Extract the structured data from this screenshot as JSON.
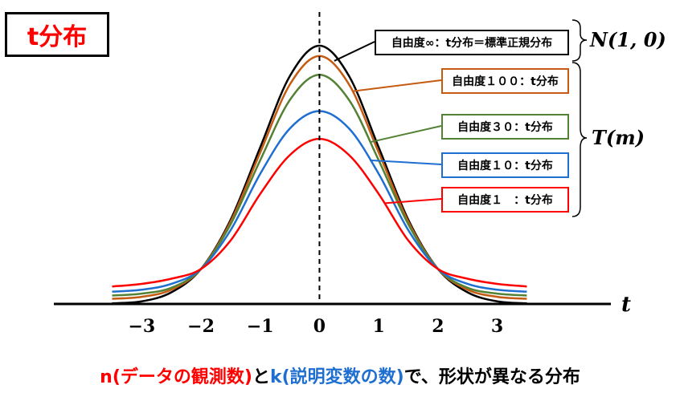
{
  "header": {
    "title": "t分布"
  },
  "legend": {
    "normal_label": "自由度∞：t分布＝標準正規分布",
    "items": [
      {
        "label": "自由度１００：t分布"
      },
      {
        "label": "自由度３０：t分布"
      },
      {
        "label": "自由度１０：t分布"
      },
      {
        "label": "自由度１　：t分布"
      }
    ],
    "bracket_top": "N(1, 0)",
    "bracket_bottom": "T(m)"
  },
  "caption": {
    "part1": "n(データの観測数)",
    "part2": "と",
    "part3": "k(説明変数の数)",
    "part4": "で、形状が異なる分布"
  },
  "colors": {
    "normal": "#000000",
    "df100": "#c55a11",
    "df30": "#548235",
    "df10": "#1f6fd1",
    "df1": "#ff0000"
  },
  "chart_data": {
    "type": "line",
    "title": "t分布",
    "xlabel": "t",
    "ylabel": "",
    "x_ticks": [
      -3,
      -2,
      -1,
      0,
      1,
      2,
      3
    ],
    "series": [
      {
        "name": "自由度∞：t分布＝標準正規分布",
        "color": "#000000",
        "x": [
          -3.5,
          -3,
          -2.5,
          -2,
          -1.5,
          -1,
          -0.5,
          0,
          0.5,
          1,
          1.5,
          2,
          2.5,
          3,
          3.5
        ],
        "y": [
          0.001,
          0.004,
          0.018,
          0.054,
          0.13,
          0.242,
          0.352,
          0.399,
          0.352,
          0.242,
          0.13,
          0.054,
          0.018,
          0.004,
          0.001
        ]
      },
      {
        "name": "自由度１００：t分布",
        "color": "#c55a11",
        "x": [
          -3.5,
          -3,
          -2.5,
          -2,
          -1.5,
          -1,
          -0.5,
          0,
          0.5,
          1,
          1.5,
          2,
          2.5,
          3,
          3.5
        ],
        "y": [
          0.008,
          0.011,
          0.022,
          0.054,
          0.127,
          0.234,
          0.339,
          0.383,
          0.339,
          0.234,
          0.127,
          0.054,
          0.022,
          0.011,
          0.008
        ]
      },
      {
        "name": "自由度３０：t分布",
        "color": "#548235",
        "x": [
          -3.5,
          -3,
          -2.5,
          -2,
          -1.5,
          -1,
          -0.5,
          0,
          0.5,
          1,
          1.5,
          2,
          2.5,
          3,
          3.5
        ],
        "y": [
          0.013,
          0.016,
          0.025,
          0.054,
          0.123,
          0.222,
          0.315,
          0.354,
          0.315,
          0.222,
          0.123,
          0.054,
          0.025,
          0.016,
          0.013
        ]
      },
      {
        "name": "自由度１０：t分布",
        "color": "#1f6fd1",
        "x": [
          -3.5,
          -3,
          -2.5,
          -2,
          -1.5,
          -1,
          -0.5,
          0,
          0.5,
          1,
          1.5,
          2,
          2.5,
          3,
          3.5
        ],
        "y": [
          0.019,
          0.022,
          0.031,
          0.054,
          0.114,
          0.201,
          0.271,
          0.298,
          0.271,
          0.201,
          0.114,
          0.054,
          0.031,
          0.022,
          0.019
        ]
      },
      {
        "name": "自由度１　：t分布",
        "color": "#ff0000",
        "x": [
          -3.5,
          -3,
          -2.5,
          -2,
          -1.5,
          -1,
          -0.5,
          0,
          0.5,
          1,
          1.5,
          2,
          2.5,
          3,
          3.5
        ],
        "y": [
          0.027,
          0.031,
          0.039,
          0.054,
          0.098,
          0.17,
          0.23,
          0.255,
          0.23,
          0.17,
          0.098,
          0.054,
          0.039,
          0.031,
          0.027
        ]
      }
    ],
    "xlim": [
      -3.9,
      4.2
    ],
    "ylim": [
      0,
      0.42
    ],
    "grid": false,
    "legend_position": "right"
  }
}
